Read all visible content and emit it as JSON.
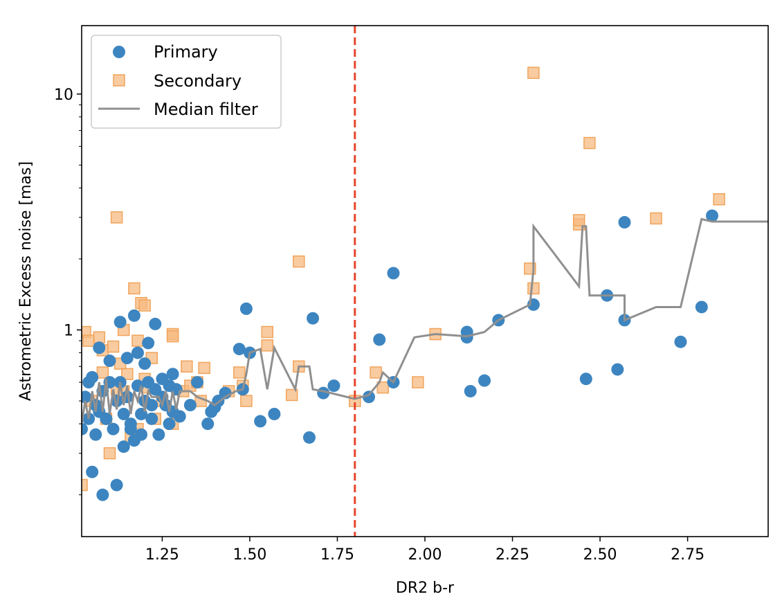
{
  "chart_data": {
    "type": "scatter",
    "title": "",
    "xlabel": "DR2 b-r",
    "ylabel": "Astrometric Excess noise [mas]",
    "xlim": [
      1.02,
      2.98
    ],
    "ylim": [
      0.133,
      19.5
    ],
    "yscale": "log",
    "x_ticks": [
      1.25,
      1.5,
      1.75,
      2.0,
      2.25,
      2.5,
      2.75
    ],
    "x_tick_labels": [
      "1.25",
      "1.50",
      "1.75",
      "2.00",
      "2.25",
      "2.50",
      "2.75"
    ],
    "y_ticks": [
      1,
      10
    ],
    "y_tick_labels": [
      "1",
      "10"
    ],
    "vline": {
      "x": 1.8,
      "color": "#e8452c",
      "style": "dashed"
    },
    "legend": {
      "location": "top-left",
      "entries": [
        {
          "label": "Primary",
          "marker": "circle",
          "color": "#3d85c0"
        },
        {
          "label": "Secondary",
          "marker": "square",
          "color": "#f7ba80"
        },
        {
          "label": "Median filter",
          "marker": "line",
          "color": "#8f8f8f"
        }
      ]
    },
    "series": [
      {
        "name": "Primary",
        "marker": "circle",
        "color": "#3d85c0",
        "points": [
          [
            1.02,
            0.38
          ],
          [
            1.03,
            0.52
          ],
          [
            1.04,
            0.6
          ],
          [
            1.04,
            0.42
          ],
          [
            1.05,
            0.63
          ],
          [
            1.06,
            0.48
          ],
          [
            1.06,
            0.36
          ],
          [
            1.07,
            0.84
          ],
          [
            1.07,
            0.45
          ],
          [
            1.08,
            0.2
          ],
          [
            1.08,
            0.55
          ],
          [
            1.09,
            0.42
          ],
          [
            1.1,
            0.74
          ],
          [
            1.1,
            0.6
          ],
          [
            1.11,
            0.38
          ],
          [
            1.12,
            0.5
          ],
          [
            1.12,
            0.22
          ],
          [
            1.13,
            1.08
          ],
          [
            1.13,
            0.6
          ],
          [
            1.14,
            0.44
          ],
          [
            1.14,
            0.32
          ],
          [
            1.15,
            0.76
          ],
          [
            1.15,
            0.52
          ],
          [
            1.16,
            0.4
          ],
          [
            1.17,
            1.15
          ],
          [
            1.17,
            0.34
          ],
          [
            1.18,
            0.8
          ],
          [
            1.18,
            0.58
          ],
          [
            1.19,
            0.44
          ],
          [
            1.19,
            0.36
          ],
          [
            1.2,
            0.72
          ],
          [
            1.2,
            0.5
          ],
          [
            1.21,
            0.88
          ],
          [
            1.21,
            0.6
          ],
          [
            1.22,
            0.48
          ],
          [
            1.22,
            0.42
          ],
          [
            1.23,
            1.06
          ],
          [
            1.23,
            0.56
          ],
          [
            1.24,
            0.36
          ],
          [
            1.25,
            0.62
          ],
          [
            1.25,
            0.52
          ],
          [
            1.26,
            0.48
          ],
          [
            1.27,
            0.58
          ],
          [
            1.27,
            0.4
          ],
          [
            1.28,
            0.65
          ],
          [
            1.28,
            0.45
          ],
          [
            1.29,
            0.56
          ],
          [
            1.3,
            0.43
          ],
          [
            1.33,
            0.48
          ],
          [
            1.35,
            0.6
          ],
          [
            1.38,
            0.4
          ],
          [
            1.39,
            0.45
          ],
          [
            1.4,
            0.47
          ],
          [
            1.41,
            0.5
          ],
          [
            1.43,
            0.54
          ],
          [
            1.47,
            0.83
          ],
          [
            1.48,
            0.56
          ],
          [
            1.49,
            1.23
          ],
          [
            1.5,
            0.8
          ],
          [
            1.53,
            0.41
          ],
          [
            1.57,
            0.44
          ],
          [
            1.67,
            0.35
          ],
          [
            1.68,
            1.12
          ],
          [
            1.71,
            0.54
          ],
          [
            1.74,
            0.58
          ],
          [
            1.84,
            0.52
          ],
          [
            1.87,
            0.91
          ],
          [
            1.91,
            0.6
          ],
          [
            1.91,
            1.74
          ],
          [
            2.12,
            0.98
          ],
          [
            2.12,
            0.93
          ],
          [
            2.13,
            0.55
          ],
          [
            2.17,
            0.61
          ],
          [
            2.21,
            1.1
          ],
          [
            2.31,
            1.28
          ],
          [
            2.46,
            0.62
          ],
          [
            2.52,
            1.4
          ],
          [
            2.55,
            0.68
          ],
          [
            2.57,
            2.86
          ],
          [
            2.57,
            1.1
          ],
          [
            2.73,
            0.89
          ],
          [
            2.79,
            1.25
          ],
          [
            2.82,
            3.05
          ],
          [
            1.05,
            0.25
          ],
          [
            1.09,
            0.42
          ],
          [
            1.16,
            0.38
          ]
        ]
      },
      {
        "name": "Secondary",
        "marker": "square",
        "color": "#f7ba80",
        "points": [
          [
            1.02,
            0.22
          ],
          [
            1.03,
            0.98
          ],
          [
            1.04,
            0.9
          ],
          [
            1.05,
            0.5
          ],
          [
            1.07,
            0.93
          ],
          [
            1.08,
            0.66
          ],
          [
            1.08,
            0.82
          ],
          [
            1.09,
            0.42
          ],
          [
            1.1,
            0.3
          ],
          [
            1.11,
            0.85
          ],
          [
            1.12,
            3.0
          ],
          [
            1.12,
            0.56
          ],
          [
            1.13,
            0.72
          ],
          [
            1.14,
            1.0
          ],
          [
            1.14,
            0.55
          ],
          [
            1.15,
            0.65
          ],
          [
            1.16,
            0.35
          ],
          [
            1.17,
            1.5
          ],
          [
            1.18,
            0.9
          ],
          [
            1.18,
            0.38
          ],
          [
            1.19,
            1.3
          ],
          [
            1.2,
            1.27
          ],
          [
            1.2,
            0.62
          ],
          [
            1.21,
            0.57
          ],
          [
            1.22,
            0.76
          ],
          [
            1.23,
            0.42
          ],
          [
            1.25,
            0.5
          ],
          [
            1.28,
            0.96
          ],
          [
            1.28,
            0.94
          ],
          [
            1.28,
            0.4
          ],
          [
            1.31,
            0.55
          ],
          [
            1.32,
            0.7
          ],
          [
            1.33,
            0.58
          ],
          [
            1.35,
            0.6
          ],
          [
            1.36,
            0.5
          ],
          [
            1.37,
            0.69
          ],
          [
            1.44,
            0.55
          ],
          [
            1.47,
            0.66
          ],
          [
            1.48,
            0.58
          ],
          [
            1.49,
            0.5
          ],
          [
            1.55,
            0.98
          ],
          [
            1.55,
            0.86
          ],
          [
            1.62,
            0.53
          ],
          [
            1.64,
            1.95
          ],
          [
            1.64,
            0.7
          ],
          [
            1.8,
            0.5
          ],
          [
            1.86,
            0.66
          ],
          [
            1.88,
            0.57
          ],
          [
            1.98,
            0.6
          ],
          [
            2.03,
            0.96
          ],
          [
            2.3,
            1.82
          ],
          [
            2.31,
            12.3
          ],
          [
            2.31,
            1.5
          ],
          [
            2.44,
            2.8
          ],
          [
            2.44,
            2.92
          ],
          [
            2.47,
            6.2
          ],
          [
            2.66,
            2.97
          ],
          [
            2.84,
            3.58
          ]
        ]
      },
      {
        "name": "Median filter",
        "marker": "line",
        "color": "#8f8f8f",
        "points": [
          [
            1.02,
            0.4
          ],
          [
            1.03,
            0.5
          ],
          [
            1.04,
            0.42
          ],
          [
            1.05,
            0.55
          ],
          [
            1.06,
            0.45
          ],
          [
            1.07,
            0.6
          ],
          [
            1.08,
            0.45
          ],
          [
            1.09,
            0.62
          ],
          [
            1.1,
            0.44
          ],
          [
            1.11,
            0.56
          ],
          [
            1.12,
            0.46
          ],
          [
            1.13,
            0.6
          ],
          [
            1.14,
            0.48
          ],
          [
            1.15,
            0.58
          ],
          [
            1.16,
            0.44
          ],
          [
            1.17,
            0.55
          ],
          [
            1.18,
            0.5
          ],
          [
            1.19,
            0.58
          ],
          [
            1.2,
            0.45
          ],
          [
            1.21,
            0.55
          ],
          [
            1.22,
            0.52
          ],
          [
            1.24,
            0.52
          ],
          [
            1.25,
            0.48
          ],
          [
            1.26,
            0.55
          ],
          [
            1.27,
            0.45
          ],
          [
            1.28,
            0.55
          ],
          [
            1.29,
            0.46
          ],
          [
            1.3,
            0.55
          ],
          [
            1.33,
            0.55
          ],
          [
            1.35,
            0.52
          ],
          [
            1.38,
            0.5
          ],
          [
            1.4,
            0.48
          ],
          [
            1.43,
            0.52
          ],
          [
            1.46,
            0.55
          ],
          [
            1.48,
            0.56
          ],
          [
            1.49,
            0.65
          ],
          [
            1.5,
            0.8
          ],
          [
            1.53,
            0.83
          ],
          [
            1.55,
            0.56
          ],
          [
            1.57,
            0.84
          ],
          [
            1.63,
            0.56
          ],
          [
            1.64,
            0.7
          ],
          [
            1.67,
            0.7
          ],
          [
            1.68,
            0.56
          ],
          [
            1.71,
            0.55
          ],
          [
            1.8,
            0.51
          ],
          [
            1.84,
            0.53
          ],
          [
            1.87,
            0.6
          ],
          [
            1.88,
            0.66
          ],
          [
            1.91,
            0.6
          ],
          [
            1.97,
            0.93
          ],
          [
            2.03,
            0.96
          ],
          [
            2.12,
            0.94
          ],
          [
            2.17,
            0.98
          ],
          [
            2.21,
            1.1
          ],
          [
            2.3,
            1.28
          ],
          [
            2.31,
            1.8
          ],
          [
            2.31,
            2.75
          ],
          [
            2.44,
            1.53
          ],
          [
            2.45,
            2.75
          ],
          [
            2.46,
            2.75
          ],
          [
            2.47,
            1.4
          ],
          [
            2.57,
            1.4
          ],
          [
            2.57,
            1.1
          ],
          [
            2.66,
            1.25
          ],
          [
            2.73,
            1.25
          ],
          [
            2.79,
            2.95
          ],
          [
            2.82,
            2.88
          ],
          [
            2.98,
            2.88
          ]
        ]
      }
    ]
  }
}
